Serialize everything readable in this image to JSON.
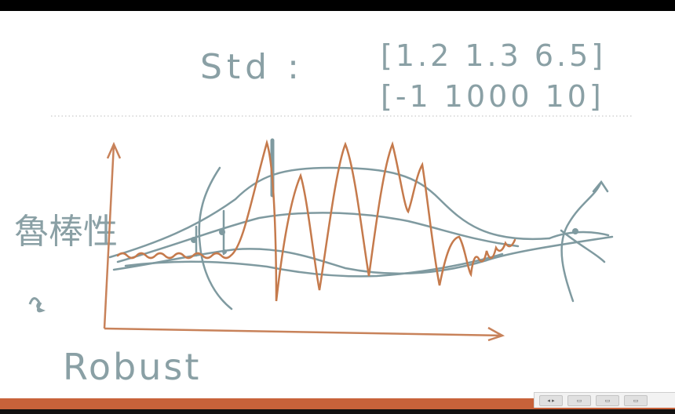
{
  "notes": {
    "std_label": "Std :",
    "row1": "[1.2  1.3  6.5]",
    "row2": "[-1  1000  10]",
    "chinese_label": "魯棒性",
    "robust_label": "Robust"
  },
  "colors": {
    "ink_blue": "#7f9aa0",
    "ink_orange": "#c57a4c",
    "axis": "#c8825a",
    "bottom_bar": "#c8623a"
  },
  "toolbar": {
    "buttons": [
      "◂ ▸",
      "▭",
      "▭",
      "▭"
    ]
  }
}
